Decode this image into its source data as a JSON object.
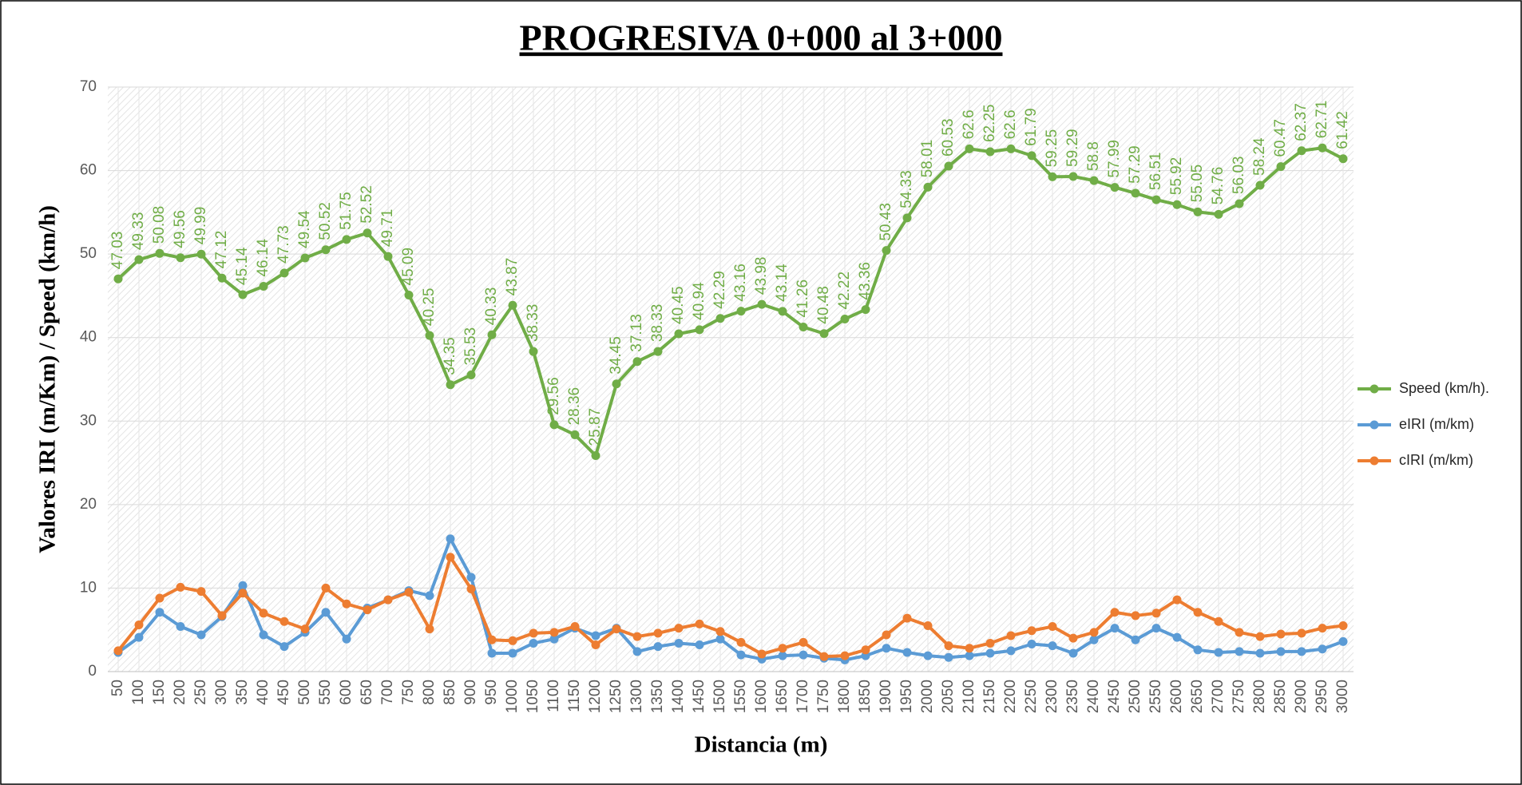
{
  "chart_data": {
    "type": "line",
    "title": "PROGRESIVA 0+000 al 3+000",
    "xlabel": "Distancia (m)",
    "ylabel": "Valores IRI (m/Km) / Speed (km/h)",
    "x": [
      50,
      100,
      150,
      200,
      250,
      300,
      350,
      400,
      450,
      500,
      550,
      600,
      650,
      700,
      750,
      800,
      850,
      900,
      950,
      1000,
      1050,
      1100,
      1150,
      1200,
      1250,
      1300,
      1350,
      1400,
      1450,
      1500,
      1550,
      1600,
      1650,
      1700,
      1750,
      1800,
      1850,
      1900,
      1950,
      2000,
      2050,
      2100,
      2150,
      2200,
      2250,
      2300,
      2350,
      2400,
      2450,
      2500,
      2550,
      2600,
      2650,
      2700,
      2750,
      2800,
      2850,
      2900,
      2950,
      3000
    ],
    "xlim": [
      25,
      3025
    ],
    "ylim": [
      0,
      70
    ],
    "yticks": [
      0,
      10,
      20,
      30,
      40,
      50,
      60,
      70
    ],
    "grid": true,
    "legend": "right",
    "series": [
      {
        "name": "Speed (km/h).",
        "color": "#70ad47",
        "data_labels": true,
        "values": [
          47.03,
          49.33,
          50.08,
          49.56,
          49.99,
          47.12,
          45.14,
          46.14,
          47.73,
          49.54,
          50.52,
          51.75,
          52.52,
          49.71,
          45.09,
          40.25,
          34.35,
          35.53,
          40.33,
          43.87,
          38.33,
          29.56,
          28.36,
          25.87,
          34.45,
          37.13,
          38.33,
          40.45,
          40.94,
          42.29,
          43.16,
          43.98,
          43.14,
          41.26,
          40.48,
          42.22,
          43.36,
          50.43,
          54.33,
          58.01,
          60.53,
          62.6,
          62.25,
          62.6,
          61.79,
          59.25,
          59.29,
          58.8,
          57.99,
          57.29,
          56.51,
          55.92,
          55.05,
          54.76,
          56.03,
          58.24,
          60.47,
          62.37,
          62.71,
          61.42
        ]
      },
      {
        "name": "eIRI (m/km)",
        "color": "#5b9bd5",
        "values": [
          2.3,
          4.1,
          7.1,
          5.4,
          4.4,
          6.6,
          10.3,
          4.4,
          3.0,
          4.7,
          7.1,
          3.9,
          7.6,
          8.6,
          9.7,
          9.1,
          15.9,
          11.3,
          2.2,
          2.2,
          3.4,
          3.9,
          5.2,
          4.3,
          5.2,
          2.4,
          3.0,
          3.4,
          3.2,
          3.9,
          2.0,
          1.5,
          1.9,
          2.0,
          1.6,
          1.4,
          1.9,
          2.8,
          2.3,
          1.9,
          1.7,
          1.9,
          2.2,
          2.5,
          3.3,
          3.1,
          2.2,
          3.8,
          5.2,
          3.8,
          5.2,
          4.1,
          2.6,
          2.3,
          2.4,
          2.2,
          2.4,
          2.4,
          2.7,
          3.6
        ]
      },
      {
        "name": "cIRI (m/km)",
        "color": "#ed7d31",
        "values": [
          2.5,
          5.6,
          8.8,
          10.1,
          9.6,
          6.7,
          9.4,
          7.0,
          6.0,
          5.1,
          10.0,
          8.1,
          7.4,
          8.6,
          9.5,
          5.1,
          13.7,
          9.9,
          3.8,
          3.7,
          4.6,
          4.7,
          5.4,
          3.2,
          5.1,
          4.2,
          4.6,
          5.2,
          5.7,
          4.8,
          3.5,
          2.1,
          2.8,
          3.5,
          1.8,
          1.9,
          2.6,
          4.4,
          6.4,
          5.5,
          3.1,
          2.8,
          3.4,
          4.3,
          4.9,
          5.4,
          4.0,
          4.7,
          7.1,
          6.7,
          7.0,
          8.6,
          7.1,
          6.0,
          4.7,
          4.2,
          4.5,
          4.6,
          5.2,
          5.5
        ]
      }
    ]
  }
}
